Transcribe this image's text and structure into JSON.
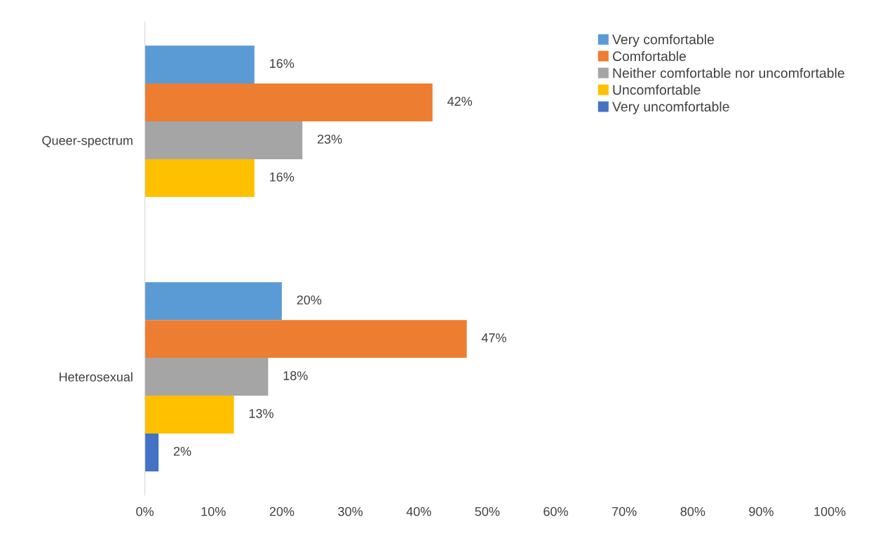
{
  "chart_data": {
    "type": "bar",
    "orientation": "horizontal",
    "categories": [
      "Queer-spectrum",
      "Heterosexual"
    ],
    "series": [
      {
        "name": "Very comfortable",
        "color": "#5b9bd5",
        "values": [
          16,
          20
        ],
        "value_labels": [
          "16%",
          "20%"
        ]
      },
      {
        "name": "Comfortable",
        "color": "#ed7d31",
        "values": [
          42,
          47
        ],
        "value_labels": [
          "42%",
          "47%"
        ]
      },
      {
        "name": "Neither comfortable nor uncomfortable",
        "color": "#a5a5a5",
        "values": [
          23,
          18
        ],
        "value_labels": [
          "23%",
          "18%"
        ]
      },
      {
        "name": "Uncomfortable",
        "color": "#ffc000",
        "values": [
          16,
          13
        ],
        "value_labels": [
          "16%",
          "13%"
        ]
      },
      {
        "name": "Very uncomfortable",
        "color": "#4472c4",
        "values": [
          null,
          2
        ],
        "value_labels": [
          null,
          "2%"
        ]
      }
    ],
    "xlim": [
      0,
      100
    ],
    "xticks": [
      {
        "value": 0,
        "label": "0%"
      },
      {
        "value": 10,
        "label": "10%"
      },
      {
        "value": 20,
        "label": "20%"
      },
      {
        "value": 30,
        "label": "30%"
      },
      {
        "value": 40,
        "label": "40%"
      },
      {
        "value": 50,
        "label": "50%"
      },
      {
        "value": 60,
        "label": "60%"
      },
      {
        "value": 70,
        "label": "70%"
      },
      {
        "value": 80,
        "label": "80%"
      },
      {
        "value": 90,
        "label": "90%"
      },
      {
        "value": 100,
        "label": "100%"
      }
    ],
    "grid": false,
    "legend": "top right"
  }
}
